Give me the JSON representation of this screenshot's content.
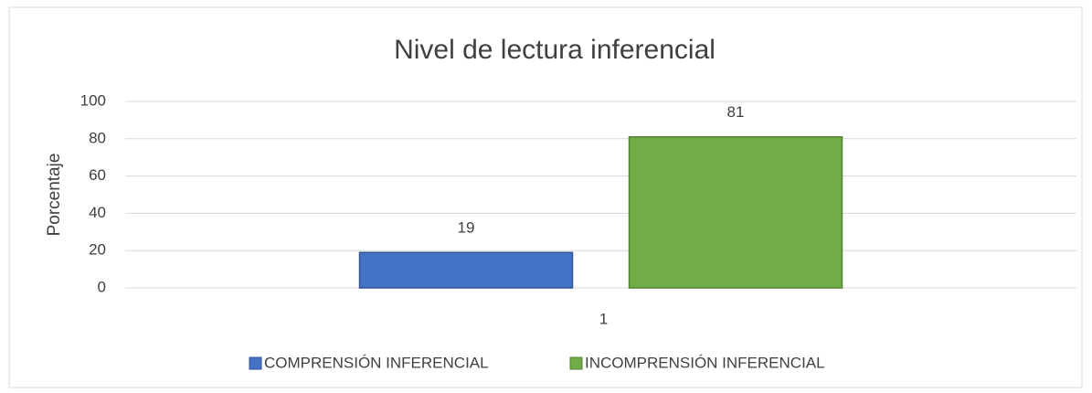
{
  "chart_data": {
    "type": "bar",
    "title": "Nivel de lectura inferencial",
    "y_label": "Porcentaje",
    "categories": [
      "1"
    ],
    "series": [
      {
        "name": "COMPRENSIÓN INFERENCIAL",
        "color": "#4472c4",
        "values": [
          19
        ]
      },
      {
        "name": "INCOMPRENSIÓN INFERENCIAL",
        "color": "#70ad47",
        "values": [
          81
        ]
      }
    ],
    "ylim": [
      0,
      100
    ],
    "yticks": [
      0,
      20,
      40,
      60,
      80,
      100
    ],
    "grid": true,
    "legend": "bottom"
  }
}
